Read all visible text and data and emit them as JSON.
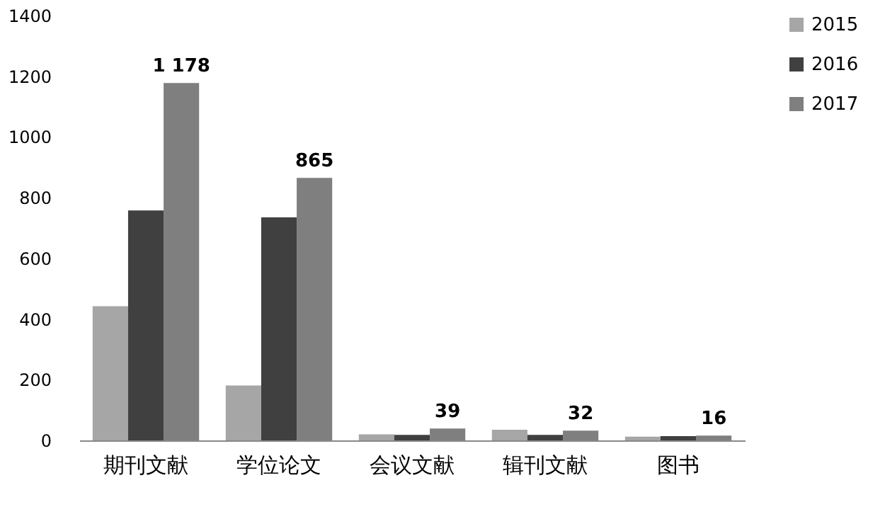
{
  "chart_data": {
    "type": "bar",
    "categories": [
      "期刊文献",
      "学位论文",
      "会议文献",
      "辑刊文献",
      "图书"
    ],
    "series": [
      {
        "name": "2015",
        "color": "#a6a6a6",
        "values": [
          442,
          181,
          20,
          35,
          12
        ]
      },
      {
        "name": "2016",
        "color": "#404040",
        "values": [
          758,
          735,
          18,
          18,
          14
        ]
      },
      {
        "name": "2017",
        "color": "#7f7f7f",
        "values": [
          1178,
          865,
          39,
          32,
          16
        ],
        "value_labels": [
          "1 178",
          "865",
          "39",
          "32",
          "16"
        ]
      }
    ],
    "ylim": [
      0,
      1400
    ],
    "yticks": [
      0,
      200,
      400,
      600,
      800,
      1000,
      1200,
      1400
    ],
    "grid": false,
    "legend": "right"
  }
}
